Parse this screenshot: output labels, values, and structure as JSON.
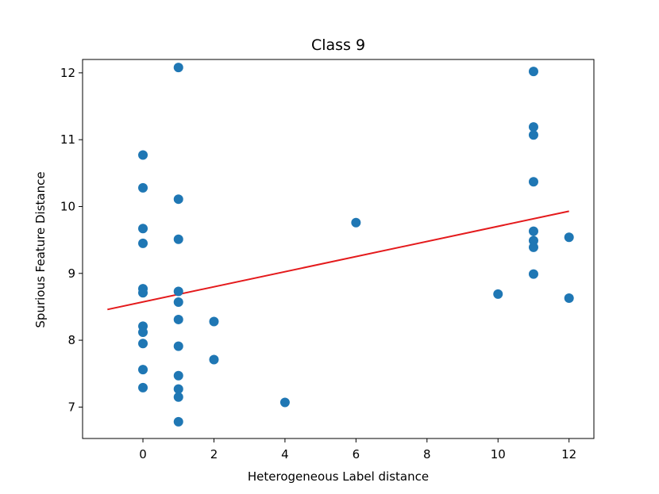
{
  "chart_data": {
    "type": "scatter",
    "title": "Class 9",
    "xlabel": "Heterogeneous Label distance",
    "ylabel": "Spurious Feature Distance",
    "xlim": [
      -1.7,
      12.7
    ],
    "ylim": [
      6.53,
      12.2
    ],
    "xticks": [
      0,
      2,
      4,
      6,
      8,
      10,
      12
    ],
    "yticks": [
      7,
      8,
      9,
      10,
      11,
      12
    ],
    "grid": false,
    "colors": {
      "points": "#1f77b4",
      "fit_line": "#e41a1c"
    },
    "points": [
      {
        "x": 0,
        "y": 10.77
      },
      {
        "x": 0,
        "y": 10.28
      },
      {
        "x": 0,
        "y": 9.67
      },
      {
        "x": 0,
        "y": 9.45
      },
      {
        "x": 0,
        "y": 8.77
      },
      {
        "x": 0,
        "y": 8.71
      },
      {
        "x": 0,
        "y": 8.21
      },
      {
        "x": 0,
        "y": 8.12
      },
      {
        "x": 0,
        "y": 7.95
      },
      {
        "x": 0,
        "y": 7.56
      },
      {
        "x": 0,
        "y": 7.29
      },
      {
        "x": 1,
        "y": 12.08
      },
      {
        "x": 1,
        "y": 10.11
      },
      {
        "x": 1,
        "y": 9.51
      },
      {
        "x": 1,
        "y": 8.73
      },
      {
        "x": 1,
        "y": 8.57
      },
      {
        "x": 1,
        "y": 8.31
      },
      {
        "x": 1,
        "y": 7.91
      },
      {
        "x": 1,
        "y": 7.47
      },
      {
        "x": 1,
        "y": 7.27
      },
      {
        "x": 1,
        "y": 7.15
      },
      {
        "x": 1,
        "y": 6.78
      },
      {
        "x": 2,
        "y": 8.28
      },
      {
        "x": 2,
        "y": 7.71
      },
      {
        "x": 4,
        "y": 7.07
      },
      {
        "x": 6,
        "y": 9.76
      },
      {
        "x": 10,
        "y": 8.69
      },
      {
        "x": 11,
        "y": 12.02
      },
      {
        "x": 11,
        "y": 11.19
      },
      {
        "x": 11,
        "y": 11.07
      },
      {
        "x": 11,
        "y": 10.37
      },
      {
        "x": 11,
        "y": 9.63
      },
      {
        "x": 11,
        "y": 9.49
      },
      {
        "x": 11,
        "y": 9.39
      },
      {
        "x": 11,
        "y": 8.99
      },
      {
        "x": 12,
        "y": 9.54
      },
      {
        "x": 12,
        "y": 8.63
      }
    ],
    "fit_line": {
      "x": [
        -1,
        12
      ],
      "y": [
        8.46,
        9.93
      ]
    }
  }
}
